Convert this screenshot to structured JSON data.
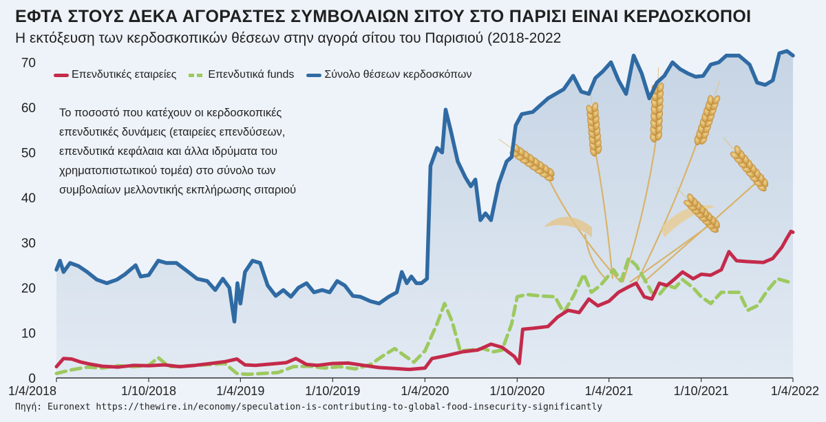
{
  "title": "ΕΦΤΑ ΣΤΟΥΣ ΔΕΚΑ ΑΓΟΡΑΣΤΕΣ ΣΥΜΒΟΛΑΙΩΝ ΣΙΤΟΥ ΣΤΟ ΠΑΡΙΣΙ ΕΙΝΑΙ ΚΕΡΔΟΣΚΟΠΟΙ",
  "subtitle": "Η εκτόξευση των κερδοσκοπικών θέσεων στην αγορά σίτου του Παρισιού (2018-2022",
  "annotation_lines": [
    "Το ποσοστό που κατέχουν οι κερδοσκοπικές",
    "επενδυτικές δυνάμεις (εταιρείες επενδύσεων,",
    "επενδυτικά κεφάλαια και άλλα ιδρύματα του",
    "χρηματοπιστωτικού τομέα) στο σύνολο των",
    "συμβολαίων μελλοντικής εκπλήρωσης σιταριού"
  ],
  "source": "Πηγή: Euronext https://thewire.in/economy/speculation-is-contributing-to-global-food-insecurity-significantly",
  "colors": {
    "total": "#2f6aa3",
    "companies": "#c42a4a",
    "funds": "#9dc95f",
    "area": "#c9d7e6"
  },
  "chart_data": {
    "type": "line",
    "x_ticks": [
      "1/4/2018",
      "1/10/2018",
      "1/4/2019",
      "1/10/2019",
      "1/4/2020",
      "1/10/2020",
      "1/4/2021",
      "1/10/2021",
      "1/4/2022"
    ],
    "y_ticks": [
      0,
      10,
      20,
      30,
      40,
      50,
      60,
      70
    ],
    "ylim": [
      0,
      72
    ],
    "xlim": [
      "1/4/2018",
      "1/4/2022"
    ],
    "grid": false,
    "legend_position": "top-left",
    "series": [
      {
        "name": "Επενδυτικές εταιρείες",
        "style": "solid",
        "points": [
          [
            "2018-04-01",
            2.5
          ],
          [
            "2018-04-15",
            4.3
          ],
          [
            "2018-05-01",
            4.2
          ],
          [
            "2018-05-20",
            3.5
          ],
          [
            "2018-06-10",
            3.0
          ],
          [
            "2018-07-01",
            2.6
          ],
          [
            "2018-08-01",
            2.4
          ],
          [
            "2018-09-01",
            2.8
          ],
          [
            "2018-10-01",
            2.7
          ],
          [
            "2018-11-01",
            2.9
          ],
          [
            "2018-12-01",
            2.5
          ],
          [
            "2019-01-01",
            2.8
          ],
          [
            "2019-02-01",
            3.2
          ],
          [
            "2019-03-01",
            3.6
          ],
          [
            "2019-03-25",
            4.2
          ],
          [
            "2019-04-10",
            2.9
          ],
          [
            "2019-05-01",
            2.8
          ],
          [
            "2019-06-01",
            3.1
          ],
          [
            "2019-07-01",
            3.4
          ],
          [
            "2019-07-20",
            4.3
          ],
          [
            "2019-08-10",
            3.0
          ],
          [
            "2019-09-01",
            2.8
          ],
          [
            "2019-10-01",
            3.2
          ],
          [
            "2019-11-01",
            3.3
          ],
          [
            "2019-12-01",
            2.8
          ],
          [
            "2020-01-01",
            2.3
          ],
          [
            "2020-02-01",
            2.1
          ],
          [
            "2020-03-01",
            1.9
          ],
          [
            "2020-04-01",
            2.2
          ],
          [
            "2020-04-15",
            4.3
          ],
          [
            "2020-05-15",
            5.0
          ],
          [
            "2020-06-15",
            5.8
          ],
          [
            "2020-07-15",
            6.2
          ],
          [
            "2020-08-10",
            7.5
          ],
          [
            "2020-09-01",
            6.8
          ],
          [
            "2020-09-25",
            4.8
          ],
          [
            "2020-10-05",
            3.2
          ],
          [
            "2020-10-12",
            10.8
          ],
          [
            "2020-11-01",
            11.0
          ],
          [
            "2020-12-01",
            11.4
          ],
          [
            "2020-12-20",
            13.5
          ],
          [
            "2021-01-10",
            15.0
          ],
          [
            "2021-02-01",
            14.5
          ],
          [
            "2021-02-20",
            17.5
          ],
          [
            "2021-03-10",
            16.0
          ],
          [
            "2021-04-01",
            17.0
          ],
          [
            "2021-04-20",
            19.0
          ],
          [
            "2021-05-10",
            20.2
          ],
          [
            "2021-05-25",
            21.0
          ],
          [
            "2021-06-10",
            18.0
          ],
          [
            "2021-06-25",
            17.5
          ],
          [
            "2021-07-10",
            21.0
          ],
          [
            "2021-07-25",
            20.5
          ],
          [
            "2021-08-10",
            22.0
          ],
          [
            "2021-08-25",
            23.5
          ],
          [
            "2021-09-15",
            22.0
          ],
          [
            "2021-10-01",
            23.0
          ],
          [
            "2021-10-20",
            22.8
          ],
          [
            "2021-11-10",
            24.0
          ],
          [
            "2021-11-25",
            28.0
          ],
          [
            "2021-12-10",
            26.0
          ],
          [
            "2022-01-01",
            25.8
          ],
          [
            "2022-02-01",
            25.6
          ],
          [
            "2022-02-20",
            26.5
          ],
          [
            "2022-03-10",
            29.0
          ],
          [
            "2022-03-20",
            31.0
          ],
          [
            "2022-03-28",
            32.5
          ],
          [
            "2022-04-01",
            32.3
          ]
        ]
      },
      {
        "name": "Επενδυτικά funds",
        "style": "dashed",
        "points": [
          [
            "2018-04-01",
            1.0
          ],
          [
            "2018-05-01",
            1.8
          ],
          [
            "2018-06-01",
            2.4
          ],
          [
            "2018-07-01",
            2.2
          ],
          [
            "2018-08-01",
            2.7
          ],
          [
            "2018-09-01",
            2.5
          ],
          [
            "2018-10-01",
            2.8
          ],
          [
            "2018-10-20",
            4.5
          ],
          [
            "2018-11-10",
            2.5
          ],
          [
            "2018-12-01",
            2.6
          ],
          [
            "2019-01-01",
            2.8
          ],
          [
            "2019-02-01",
            3.0
          ],
          [
            "2019-03-01",
            3.2
          ],
          [
            "2019-03-25",
            1.0
          ],
          [
            "2019-04-15",
            0.8
          ],
          [
            "2019-05-15",
            1.0
          ],
          [
            "2019-06-15",
            1.2
          ],
          [
            "2019-07-15",
            2.5
          ],
          [
            "2019-08-15",
            2.6
          ],
          [
            "2019-09-15",
            2.2
          ],
          [
            "2019-10-15",
            2.5
          ],
          [
            "2019-11-15",
            2.0
          ],
          [
            "2019-12-15",
            3.0
          ],
          [
            "2020-01-10",
            5.0
          ],
          [
            "2020-02-01",
            6.5
          ],
          [
            "2020-02-20",
            5.0
          ],
          [
            "2020-03-10",
            3.5
          ],
          [
            "2020-04-01",
            6.0
          ],
          [
            "2020-04-25",
            12.0
          ],
          [
            "2020-05-10",
            16.5
          ],
          [
            "2020-05-25",
            12.5
          ],
          [
            "2020-06-10",
            6.0
          ],
          [
            "2020-07-01",
            6.2
          ],
          [
            "2020-07-25",
            6.5
          ],
          [
            "2020-08-15",
            5.8
          ],
          [
            "2020-09-01",
            6.2
          ],
          [
            "2020-09-20",
            12.0
          ],
          [
            "2020-10-01",
            18.0
          ],
          [
            "2020-10-20",
            18.5
          ],
          [
            "2020-11-15",
            18.2
          ],
          [
            "2020-12-15",
            18.0
          ],
          [
            "2021-01-01",
            14.5
          ],
          [
            "2021-01-20",
            18.0
          ],
          [
            "2021-02-10",
            23.0
          ],
          [
            "2021-02-25",
            19.0
          ],
          [
            "2021-03-15",
            20.5
          ],
          [
            "2021-04-10",
            24.0
          ],
          [
            "2021-04-25",
            21.5
          ],
          [
            "2021-05-10",
            26.5
          ],
          [
            "2021-05-25",
            25.0
          ],
          [
            "2021-06-10",
            22.0
          ],
          [
            "2021-06-25",
            19.0
          ],
          [
            "2021-07-10",
            18.5
          ],
          [
            "2021-07-25",
            20.5
          ],
          [
            "2021-08-10",
            20.0
          ],
          [
            "2021-08-25",
            21.8
          ],
          [
            "2021-09-15",
            20.0
          ],
          [
            "2021-10-01",
            18.0
          ],
          [
            "2021-10-20",
            16.5
          ],
          [
            "2021-11-10",
            19.0
          ],
          [
            "2021-12-15",
            19.0
          ],
          [
            "2022-01-01",
            15.0
          ],
          [
            "2022-01-20",
            16.0
          ],
          [
            "2022-02-10",
            19.5
          ],
          [
            "2022-03-01",
            22.0
          ],
          [
            "2022-04-01",
            21.0
          ]
        ]
      },
      {
        "name": "Σύνολο θέσεων κερδοσκόπων",
        "style": "solid-area",
        "points": [
          [
            "2018-04-01",
            24.0
          ],
          [
            "2018-04-08",
            26.0
          ],
          [
            "2018-04-15",
            23.5
          ],
          [
            "2018-04-28",
            25.5
          ],
          [
            "2018-05-15",
            24.8
          ],
          [
            "2018-06-01",
            23.5
          ],
          [
            "2018-06-20",
            21.8
          ],
          [
            "2018-07-10",
            21.0
          ],
          [
            "2018-07-30",
            21.8
          ],
          [
            "2018-08-15",
            23.0
          ],
          [
            "2018-09-05",
            25.0
          ],
          [
            "2018-09-15",
            22.5
          ],
          [
            "2018-10-01",
            22.8
          ],
          [
            "2018-10-20",
            26.0
          ],
          [
            "2018-11-05",
            25.5
          ],
          [
            "2018-11-25",
            25.5
          ],
          [
            "2018-12-15",
            23.8
          ],
          [
            "2019-01-05",
            22.0
          ],
          [
            "2019-01-25",
            21.5
          ],
          [
            "2019-02-10",
            19.5
          ],
          [
            "2019-02-25",
            22.0
          ],
          [
            "2019-03-10",
            20.0
          ],
          [
            "2019-03-20",
            12.5
          ],
          [
            "2019-03-26",
            21.0
          ],
          [
            "2019-04-01",
            16.5
          ],
          [
            "2019-04-10",
            23.5
          ],
          [
            "2019-04-25",
            26.0
          ],
          [
            "2019-05-10",
            25.5
          ],
          [
            "2019-05-25",
            20.5
          ],
          [
            "2019-06-10",
            18.2
          ],
          [
            "2019-06-25",
            19.5
          ],
          [
            "2019-07-10",
            18.0
          ],
          [
            "2019-07-25",
            20.0
          ],
          [
            "2019-08-10",
            21.0
          ],
          [
            "2019-08-25",
            19.0
          ],
          [
            "2019-09-10",
            19.5
          ],
          [
            "2019-09-25",
            19.0
          ],
          [
            "2019-10-10",
            21.5
          ],
          [
            "2019-10-25",
            20.5
          ],
          [
            "2019-11-10",
            18.2
          ],
          [
            "2019-11-25",
            18.0
          ],
          [
            "2019-12-15",
            17.0
          ],
          [
            "2020-01-01",
            16.5
          ],
          [
            "2020-01-20",
            18.0
          ],
          [
            "2020-02-05",
            19.0
          ],
          [
            "2020-02-15",
            23.5
          ],
          [
            "2020-02-25",
            21.0
          ],
          [
            "2020-03-05",
            22.5
          ],
          [
            "2020-03-15",
            21.0
          ],
          [
            "2020-03-25",
            21.0
          ],
          [
            "2020-04-05",
            22.0
          ],
          [
            "2020-04-12",
            47.0
          ],
          [
            "2020-04-25",
            51.0
          ],
          [
            "2020-05-05",
            50.0
          ],
          [
            "2020-05-12",
            59.5
          ],
          [
            "2020-05-22",
            55.0
          ],
          [
            "2020-06-05",
            48.0
          ],
          [
            "2020-06-20",
            44.5
          ],
          [
            "2020-07-01",
            42.5
          ],
          [
            "2020-07-10",
            44.0
          ],
          [
            "2020-07-20",
            35.0
          ],
          [
            "2020-07-30",
            36.5
          ],
          [
            "2020-08-10",
            35.0
          ],
          [
            "2020-08-25",
            43.0
          ],
          [
            "2020-09-10",
            48.0
          ],
          [
            "2020-09-20",
            49.0
          ],
          [
            "2020-09-28",
            56.0
          ],
          [
            "2020-10-10",
            58.5
          ],
          [
            "2020-11-01",
            59.0
          ],
          [
            "2020-12-01",
            62.0
          ],
          [
            "2021-01-01",
            64.0
          ],
          [
            "2021-01-20",
            67.0
          ],
          [
            "2021-02-05",
            63.5
          ],
          [
            "2021-02-20",
            63.0
          ],
          [
            "2021-03-05",
            66.5
          ],
          [
            "2021-03-20",
            68.0
          ],
          [
            "2021-04-05",
            70.0
          ],
          [
            "2021-04-20",
            66.0
          ],
          [
            "2021-05-05",
            63.0
          ],
          [
            "2021-05-20",
            71.5
          ],
          [
            "2021-06-05",
            67.5
          ],
          [
            "2021-06-20",
            62.0
          ],
          [
            "2021-07-05",
            65.5
          ],
          [
            "2021-07-20",
            67.0
          ],
          [
            "2021-08-05",
            70.0
          ],
          [
            "2021-08-20",
            68.5
          ],
          [
            "2021-09-05",
            67.5
          ],
          [
            "2021-09-20",
            66.8
          ],
          [
            "2021-10-05",
            67.0
          ],
          [
            "2021-10-20",
            69.5
          ],
          [
            "2021-11-05",
            70.0
          ],
          [
            "2021-11-20",
            71.5
          ],
          [
            "2021-12-15",
            71.5
          ],
          [
            "2022-01-05",
            69.5
          ],
          [
            "2022-01-20",
            65.5
          ],
          [
            "2022-02-05",
            65.0
          ],
          [
            "2022-02-20",
            66.0
          ],
          [
            "2022-03-05",
            72.0
          ],
          [
            "2022-03-20",
            72.5
          ],
          [
            "2022-04-01",
            71.5
          ]
        ]
      }
    ]
  }
}
